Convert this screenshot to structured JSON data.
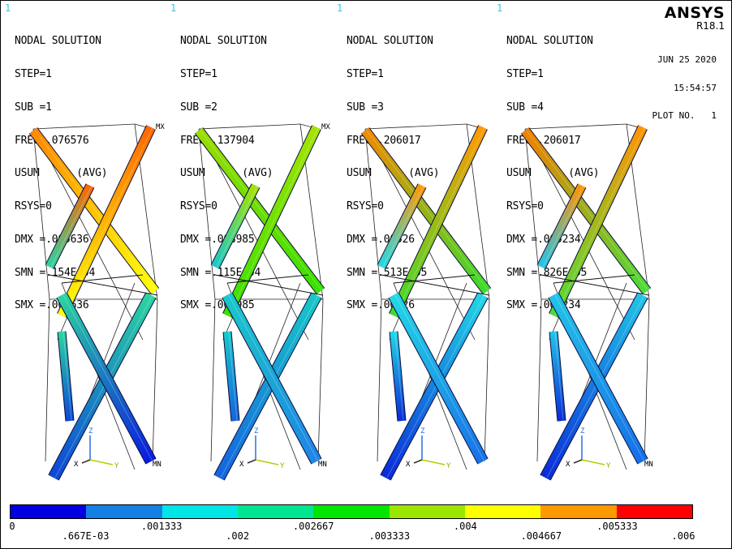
{
  "brand": {
    "name": "ANSYS",
    "version": "R18.1"
  },
  "date": "JUN 25 2020",
  "time": "15:54:57",
  "plot_no": "PLOT NO.   1",
  "panels": [
    {
      "window": "1",
      "title": "NODAL SOLUTION",
      "step": "STEP=1",
      "sub": "SUB =1",
      "freq": "FREQ=.076576",
      "usum": "USUM      (AVG)",
      "rsys": "RSYS=0",
      "dmx": "DMX =.005636",
      "smn": "SMN =.154E-04",
      "smx": "SMX =.005636",
      "mx": "MX",
      "mn": "MN",
      "colors": {
        "tl": "#ff8800",
        "tr": "#ff6600",
        "mid": "#ffff00",
        "low": "#2bd4a0",
        "bl": "#0c47d8",
        "br": "#0a1ae0"
      }
    },
    {
      "window": "1",
      "title": "NODAL SOLUTION",
      "step": "STEP=1",
      "sub": "SUB =2",
      "freq": "FREQ=.137904",
      "usum": "USUM      (AVG)",
      "rsys": "RSYS=0",
      "dmx": "DMX =.003985",
      "smn": "SMN =.115E-04",
      "smx": "SMX =.003985",
      "mx": "MX",
      "mn": "MN",
      "colors": {
        "tl": "#9bdc00",
        "tr": "#a6e300",
        "mid": "#38e000",
        "low": "#19c8c8",
        "bl": "#1464e0",
        "br": "#1f84e8"
      }
    },
    {
      "window": "1",
      "title": "NODAL SOLUTION",
      "step": "STEP=1",
      "sub": "SUB =3",
      "freq": "FREQ=.206017",
      "usum": "USUM      (AVG)",
      "rsys": "RSYS=0",
      "dmx": "DMX =.00526",
      "smn": "SMN =.513E-05",
      "smx": "SMX =.00526",
      "mx": "",
      "mn": "",
      "colors": {
        "tl": "#f08a00",
        "tr": "#ff9a00",
        "mid": "#3cdc2c",
        "low": "#22d8e6",
        "bl": "#0a2bd8",
        "br": "#1870e8"
      }
    },
    {
      "window": "1",
      "title": "NODAL SOLUTION",
      "step": "STEP=1",
      "sub": "SUB =4",
      "freq": "FREQ=.206017",
      "usum": "USUM      (AVG)",
      "rsys": "RSYS=0",
      "dmx": "DMX =.005234",
      "smn": "SMN =.826E-05",
      "smx": "SMX =.005234",
      "mx": "",
      "mn": "MN",
      "colors": {
        "tl": "#f08000",
        "tr": "#ff9400",
        "mid": "#4cdc38",
        "low": "#22c4e8",
        "bl": "#0a2cd8",
        "br": "#166ee8"
      }
    }
  ],
  "legend": {
    "colors": [
      "#0000e0",
      "#1480e6",
      "#00e6e6",
      "#00e690",
      "#00e600",
      "#9be600",
      "#ffff00",
      "#ff9900",
      "#ff0000"
    ],
    "ticks": [
      "0",
      ".667E-03",
      ".001333",
      ".002",
      ".002667",
      ".003333",
      ".004",
      ".004667",
      ".005333",
      ".006"
    ]
  },
  "triad": {
    "x": "X",
    "y": "Y",
    "z": "Z"
  }
}
